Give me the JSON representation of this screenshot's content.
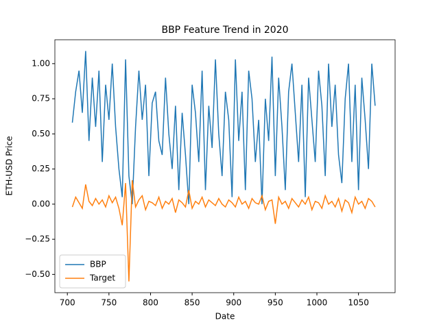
{
  "chart_data": {
    "type": "line",
    "title": "BBP Feature Trend in 2020",
    "x_label": "Date",
    "y_label": "ETH-USD Price",
    "x": [
      706,
      710,
      714,
      718,
      722,
      726,
      730,
      734,
      738,
      742,
      746,
      750,
      754,
      758,
      762,
      766,
      770,
      774,
      778,
      782,
      786,
      790,
      794,
      798,
      802,
      806,
      810,
      814,
      818,
      822,
      826,
      830,
      834,
      838,
      842,
      846,
      850,
      854,
      858,
      862,
      866,
      870,
      874,
      878,
      882,
      886,
      890,
      894,
      898,
      902,
      906,
      910,
      914,
      918,
      922,
      926,
      930,
      934,
      938,
      942,
      946,
      950,
      954,
      958,
      962,
      966,
      970,
      974,
      978,
      982,
      986,
      990,
      994,
      998,
      1002,
      1006,
      1010,
      1014,
      1018,
      1022,
      1026,
      1030,
      1034,
      1038,
      1042,
      1046,
      1050,
      1054,
      1058,
      1062,
      1066,
      1070
    ],
    "series": [
      {
        "name": "BBP",
        "color": "#1f77b4",
        "values": [
          0.58,
          0.8,
          0.95,
          0.65,
          1.09,
          0.45,
          0.9,
          0.55,
          0.95,
          0.3,
          0.85,
          0.6,
          1.0,
          0.55,
          0.25,
          0.05,
          1.03,
          0.2,
          0.0,
          0.55,
          0.95,
          0.6,
          0.85,
          0.2,
          0.72,
          0.8,
          0.45,
          0.35,
          0.9,
          0.5,
          0.25,
          0.7,
          0.1,
          0.65,
          0.35,
          0.0,
          0.85,
          0.65,
          0.3,
          0.95,
          0.1,
          0.7,
          0.4,
          1.03,
          0.5,
          0.2,
          0.8,
          0.6,
          0.05,
          1.03,
          0.45,
          0.8,
          0.1,
          0.95,
          0.75,
          0.3,
          0.6,
          0.0,
          0.75,
          0.45,
          1.05,
          0.2,
          0.9,
          0.55,
          0.1,
          0.8,
          1.0,
          0.65,
          0.3,
          0.85,
          0.05,
          0.9,
          0.6,
          0.3,
          0.95,
          0.7,
          0.2,
          1.0,
          0.55,
          0.85,
          0.35,
          0.15,
          0.75,
          1.0,
          0.3,
          0.85,
          0.1,
          0.9,
          0.6,
          0.25,
          1.0,
          0.7
        ]
      },
      {
        "name": "Target",
        "color": "#ff7f0e",
        "values": [
          -0.02,
          0.05,
          0.01,
          -0.03,
          0.14,
          0.02,
          -0.01,
          0.04,
          0.0,
          0.03,
          -0.02,
          0.06,
          0.01,
          0.05,
          -0.03,
          -0.15,
          0.15,
          -0.55,
          0.17,
          -0.02,
          0.03,
          0.06,
          -0.04,
          0.02,
          0.01,
          -0.01,
          0.05,
          -0.03,
          0.02,
          0.0,
          0.04,
          -0.06,
          0.03,
          0.01,
          -0.02,
          0.1,
          -0.03,
          0.02,
          0.0,
          0.05,
          -0.02,
          0.03,
          0.01,
          -0.01,
          0.04,
          0.0,
          -0.02,
          0.03,
          0.01,
          -0.02,
          0.05,
          0.0,
          0.02,
          -0.03,
          0.04,
          0.01,
          0.0,
          0.06,
          -0.04,
          0.02,
          0.03,
          -0.14,
          0.05,
          0.0,
          0.02,
          -0.03,
          0.04,
          0.01,
          -0.02,
          0.03,
          0.0,
          0.05,
          -0.04,
          0.02,
          0.01,
          -0.03,
          0.06,
          0.0,
          0.02,
          -0.02,
          0.04,
          -0.05,
          0.03,
          0.01,
          -0.06,
          0.05,
          0.0,
          0.02,
          -0.03,
          0.04,
          0.02,
          -0.02
        ]
      }
    ],
    "xlim": [
      685,
      1094
    ],
    "ylim": [
      -0.63,
      1.17
    ],
    "xticks": [
      700,
      750,
      800,
      850,
      900,
      950,
      1000,
      1050
    ],
    "yticks": [
      {
        "value": -0.5,
        "label": "−0.50"
      },
      {
        "value": -0.25,
        "label": "−0.25"
      },
      {
        "value": 0,
        "label": "0.00"
      },
      {
        "value": 0.25,
        "label": "0.25"
      },
      {
        "value": 0.5,
        "label": "0.50"
      },
      {
        "value": 0.75,
        "label": "0.75"
      },
      {
        "value": 1,
        "label": "1.00"
      }
    ],
    "legend": "lower left"
  }
}
